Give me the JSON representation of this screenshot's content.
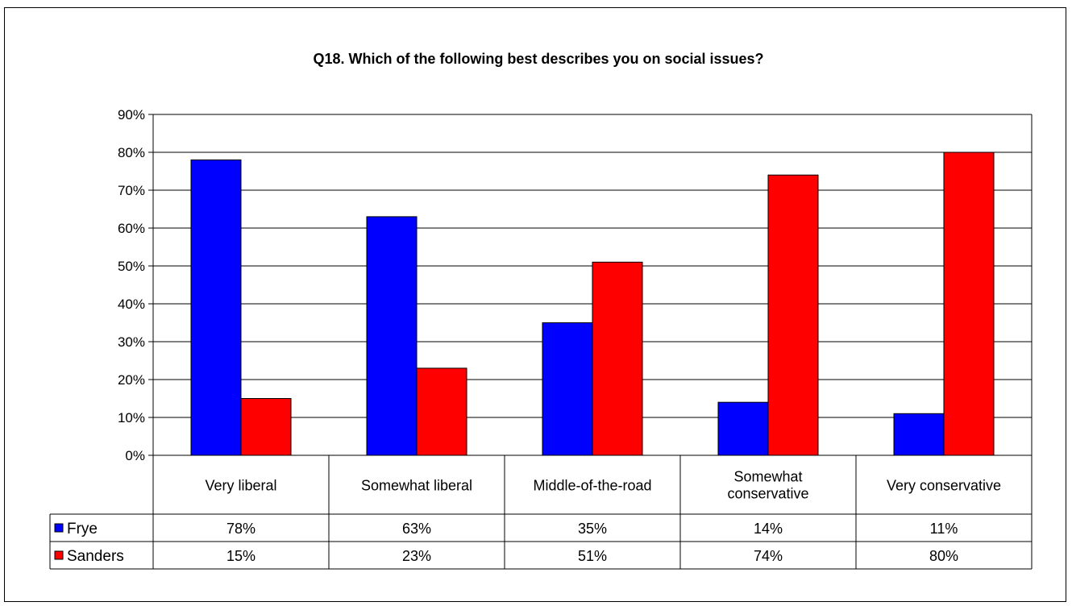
{
  "chart_data": {
    "type": "bar",
    "title": "Q18. Which of the following best describes you on social issues?",
    "categories": [
      "Very liberal",
      "Somewhat liberal",
      "Middle-of-the-road",
      "Somewhat conservative",
      "Very conservative"
    ],
    "series": [
      {
        "name": "Frye",
        "color": "#0000ff",
        "values": [
          78,
          63,
          35,
          14,
          11
        ],
        "labels": [
          "78%",
          "63%",
          "35%",
          "14%",
          "11%"
        ]
      },
      {
        "name": "Sanders",
        "color": "#ff0000",
        "values": [
          15,
          23,
          51,
          74,
          80
        ],
        "labels": [
          "15%",
          "23%",
          "51%",
          "74%",
          "80%"
        ]
      }
    ],
    "ylim": [
      0,
      90
    ],
    "yticks": [
      "0%",
      "10%",
      "20%",
      "30%",
      "40%",
      "50%",
      "60%",
      "70%",
      "80%",
      "90%"
    ],
    "grid": true,
    "legend": "data-table-left",
    "data_table": true
  }
}
